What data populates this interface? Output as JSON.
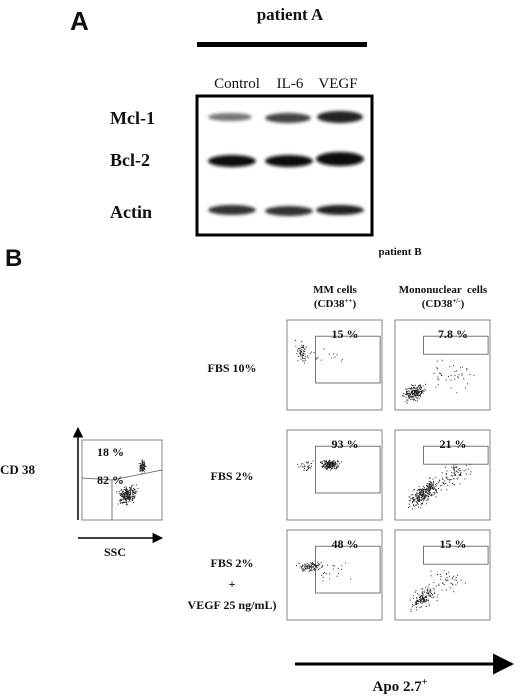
{
  "panel_a": {
    "letter": "A",
    "patient": "patient A",
    "lanes": [
      "Control",
      "IL-6",
      "VEGF"
    ],
    "rows": [
      "Mcl-1",
      "Bcl-2",
      "Actin"
    ]
  },
  "panel_b": {
    "letter": "B",
    "patient": "patient B",
    "columns": [
      {
        "name": "MM cells",
        "marker": "(CD38",
        "sup": "++",
        "close": ")"
      },
      {
        "name": "Mononuclear  cells",
        "marker": "(CD38",
        "sup": "+/-",
        "close": ")"
      }
    ],
    "conditions": [
      [
        "FBS 10%"
      ],
      [
        "FBS 2%"
      ],
      [
        "FBS 2%",
        "+",
        "VEGF 25 ng/mL)"
      ]
    ],
    "percents": [
      [
        "15 %",
        "7.8 %"
      ],
      [
        "93 %",
        "21 %"
      ],
      [
        "48 %",
        "15 %"
      ]
    ],
    "gating": {
      "y_label": "CD 38",
      "x_label": "SSC",
      "upper": "18 %",
      "lower": "82 %"
    },
    "x_axis": {
      "label": "Apo 2.7",
      "sup": "+"
    }
  }
}
